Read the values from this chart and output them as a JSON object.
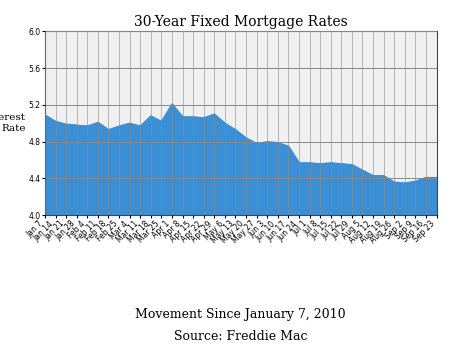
{
  "title": "30-Year Fixed Mortgage Rates",
  "xlabel": "Movement Since January 7, 2010",
  "ylabel": "Interest\nRate",
  "source": "Source: Freddie Mac",
  "ylim": [
    4.0,
    6.0
  ],
  "yticks": [
    4.0,
    4.4,
    4.8,
    5.2,
    5.6,
    6.0
  ],
  "fill_color": "#3b8fd4",
  "line_color": "#3b8fd4",
  "bg_color": "#f0f0f0",
  "x_labels": [
    "Jan 7",
    "Jan 14",
    "Jan 21",
    "Jan 28",
    "Feb 4",
    "Feb 11",
    "Feb 18",
    "Feb 25",
    "Mar 4",
    "Mar 11",
    "Mar 18",
    "Mar 25",
    "Apr 1",
    "Apr 8",
    "Apr 15",
    "Apr 22",
    "Apr 29",
    "May 6",
    "May 13",
    "May 20",
    "May 27",
    "Jun 3",
    "Jun 10",
    "Jun 17",
    "Jun 24",
    "Jul 1",
    "Jul 8",
    "Jul 15",
    "Jul 22",
    "Jul 29",
    "Aug 5",
    "Aug 12",
    "Aug 19",
    "Aug 26",
    "Sep 2",
    "Sep 9",
    "Sep 16",
    "Sep 23"
  ],
  "rates": [
    5.09,
    5.02,
    4.99,
    4.98,
    4.97,
    5.01,
    4.93,
    4.97,
    5.0,
    4.97,
    5.08,
    5.02,
    5.21,
    5.07,
    5.07,
    5.06,
    5.1,
    5.0,
    4.93,
    4.84,
    4.78,
    4.8,
    4.79,
    4.75,
    4.57,
    4.57,
    4.56,
    4.57,
    4.56,
    4.55,
    4.49,
    4.43,
    4.43,
    4.36,
    4.35,
    4.37,
    4.41,
    4.41
  ],
  "title_fontsize": 10,
  "ylabel_fontsize": 7.5,
  "tick_fontsize": 5.5,
  "xlabel_fontsize": 9,
  "source_fontsize": 9
}
